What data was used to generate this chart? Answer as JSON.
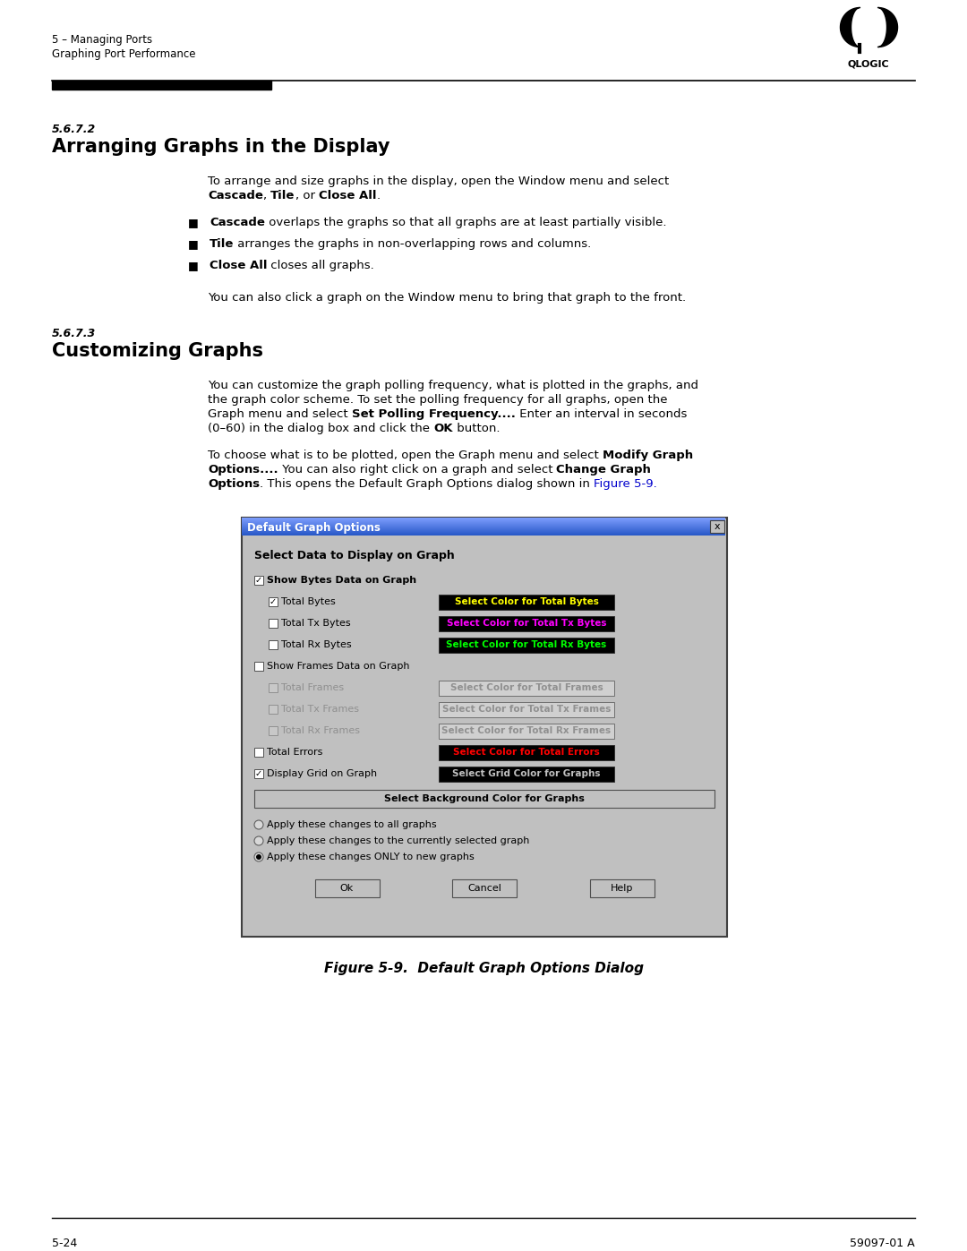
{
  "page_bg": "#ffffff",
  "header_line1": "5 – Managing Ports",
  "header_line2": "Graphing Port Performance",
  "section_572_label": "5.6.7.2",
  "section_572_title": "Arranging Graphs in the Display",
  "section_573_label": "5.6.7.3",
  "section_573_title": "Customizing Graphs",
  "figure_caption": "Figure 5-9.  Default Graph Options Dialog",
  "footer_left": "5-24",
  "footer_right": "59097-01 A",
  "dialog_title": "Default Graph Options",
  "section_label": "Select Data to Display on Graph",
  "items": [
    {
      "label": "Show Bytes Data on Graph",
      "checked": true,
      "indent": 0,
      "has_button": false,
      "button_text": "",
      "button_bg": "",
      "button_fg": "",
      "disabled": false,
      "bold": true
    },
    {
      "label": "Total Bytes",
      "checked": true,
      "indent": 1,
      "has_button": true,
      "button_text": "Select Color for Total Bytes",
      "button_bg": "#000000",
      "button_fg": "#ffff00",
      "disabled": false,
      "bold": false
    },
    {
      "label": "Total Tx Bytes",
      "checked": false,
      "indent": 1,
      "has_button": true,
      "button_text": "Select Color for Total Tx Bytes",
      "button_bg": "#000000",
      "button_fg": "#ff00ff",
      "disabled": false,
      "bold": false
    },
    {
      "label": "Total Rx Bytes",
      "checked": false,
      "indent": 1,
      "has_button": true,
      "button_text": "Select Color for Total Rx Bytes",
      "button_bg": "#000000",
      "button_fg": "#00ff00",
      "disabled": false,
      "bold": false
    },
    {
      "label": "Show Frames Data on Graph",
      "checked": false,
      "indent": 0,
      "has_button": false,
      "button_text": "",
      "button_bg": "",
      "button_fg": "",
      "disabled": false,
      "bold": false
    },
    {
      "label": "Total Frames",
      "checked": false,
      "indent": 1,
      "has_button": true,
      "button_text": "Select Color for Total Frames",
      "button_bg": "#d0d0d0",
      "button_fg": "#909090",
      "disabled": true,
      "bold": false
    },
    {
      "label": "Total Tx Frames",
      "checked": false,
      "indent": 1,
      "has_button": true,
      "button_text": "Select Color for Total Tx Frames",
      "button_bg": "#d0d0d0",
      "button_fg": "#909090",
      "disabled": true,
      "bold": false
    },
    {
      "label": "Total Rx Frames",
      "checked": false,
      "indent": 1,
      "has_button": true,
      "button_text": "Select Color for Total Rx Frames",
      "button_bg": "#d0d0d0",
      "button_fg": "#909090",
      "disabled": true,
      "bold": false
    },
    {
      "label": "Total Errors",
      "checked": false,
      "indent": 0,
      "has_button": true,
      "button_text": "Select Color for Total Errors",
      "button_bg": "#000000",
      "button_fg": "#ff0000",
      "disabled": false,
      "bold": false
    },
    {
      "label": "Display Grid on Graph",
      "checked": true,
      "indent": 0,
      "has_button": true,
      "button_text": "Select Grid Color for Graphs",
      "button_bg": "#000000",
      "button_fg": "#c0c0c0",
      "disabled": false,
      "bold": false
    }
  ],
  "bg_button_text": "Select Background Color for Graphs",
  "radio_options": [
    {
      "label": "Apply these changes to all graphs",
      "selected": false
    },
    {
      "label": "Apply these changes to the currently selected graph",
      "selected": false
    },
    {
      "label": "Apply these changes ONLY to new graphs",
      "selected": true
    }
  ],
  "dialog_buttons": [
    "Ok",
    "Cancel",
    "Help"
  ],
  "link_color": "#0000cc",
  "title_color": "#000080"
}
